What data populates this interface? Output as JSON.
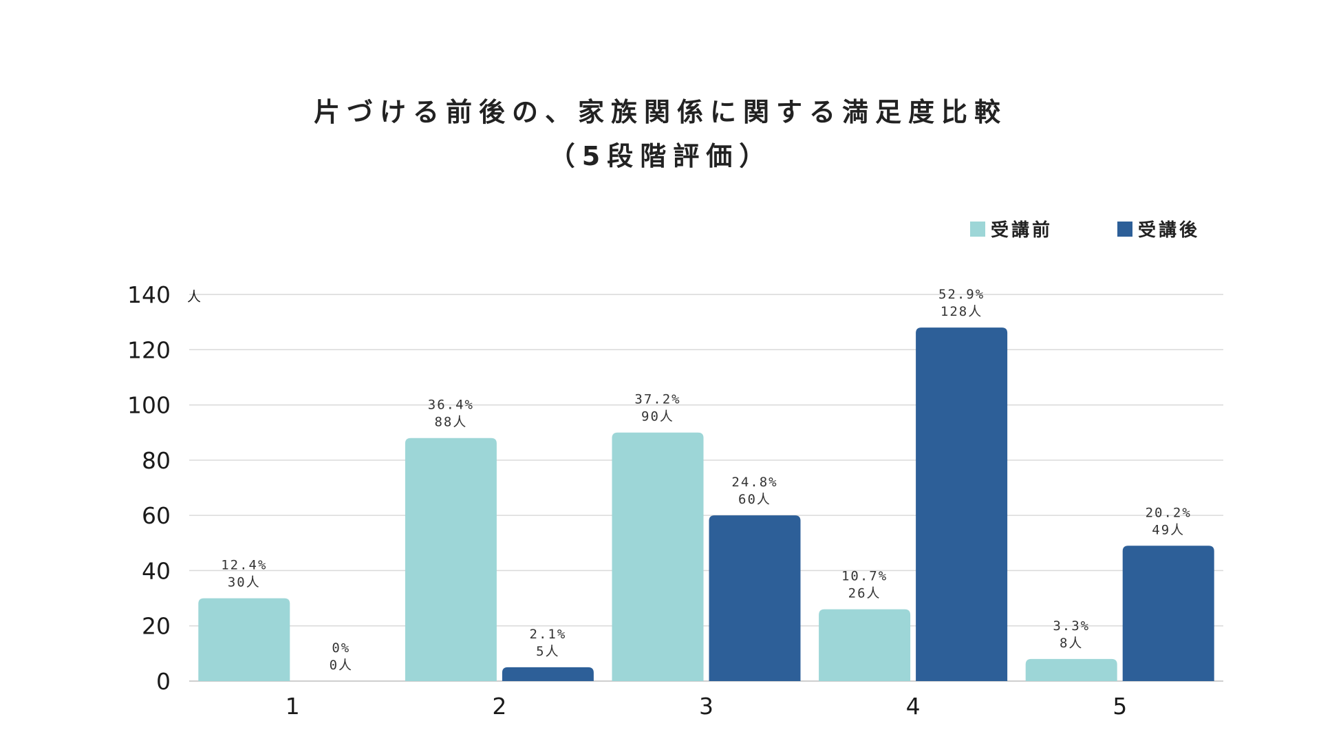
{
  "chart_data": {
    "type": "bar",
    "title": "片づける前後の、家族関係に関する満足度比較",
    "subtitle": "（5段階評価）",
    "ylabel": "人",
    "xlabel": "",
    "ylim": [
      0,
      140
    ],
    "yticks": [
      "0",
      "20",
      "40",
      "60",
      "80",
      "100",
      "120",
      "140"
    ],
    "categories": [
      "1",
      "2",
      "3",
      "4",
      "5"
    ],
    "grid": true,
    "legend_position": "top-right",
    "series": [
      {
        "name": "受講前",
        "color": "#9dd6d7",
        "values": [
          30,
          88,
          90,
          26,
          8
        ],
        "pct_labels": [
          "12.4%",
          "36.4%",
          "37.2%",
          "10.7%",
          "3.3%"
        ],
        "count_labels": [
          "30人",
          "88人",
          "90人",
          "26人",
          "8人"
        ]
      },
      {
        "name": "受講後",
        "color": "#2d5f98",
        "values": [
          0,
          5,
          60,
          128,
          49
        ],
        "pct_labels": [
          "0%",
          "2.1%",
          "24.8%",
          "52.9%",
          "20.2%"
        ],
        "count_labels": [
          "0人",
          "5人",
          "60人",
          "128人",
          "49人"
        ]
      }
    ]
  }
}
